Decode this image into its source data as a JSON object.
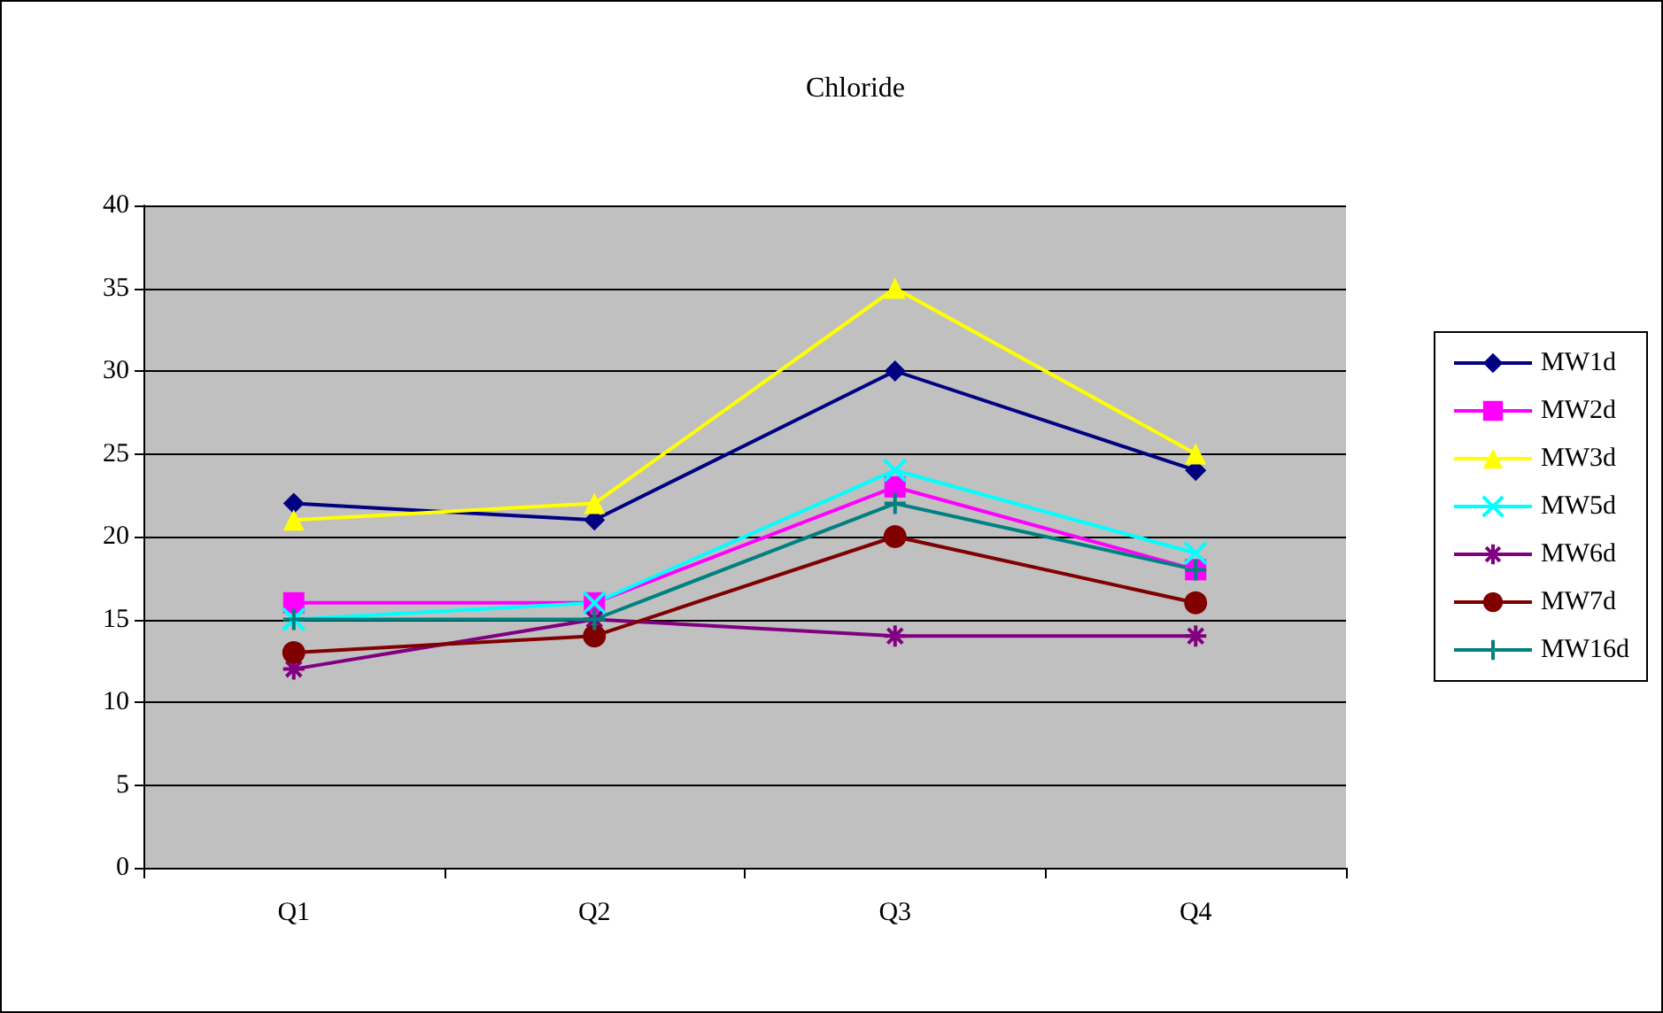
{
  "chart_data": {
    "type": "line",
    "title": "Chloride",
    "categories": [
      "Q1",
      "Q2",
      "Q3",
      "Q4"
    ],
    "series": [
      {
        "name": "MW1d",
        "color": "#000080",
        "marker": "diamond",
        "values": [
          22,
          21,
          30,
          24
        ]
      },
      {
        "name": "MW2d",
        "color": "#ff00ff",
        "marker": "square",
        "values": [
          16,
          16,
          23,
          18
        ]
      },
      {
        "name": "MW3d",
        "color": "#ffff00",
        "marker": "triangle",
        "values": [
          21,
          22,
          35,
          25
        ]
      },
      {
        "name": "MW5d",
        "color": "#00ffff",
        "marker": "x",
        "values": [
          15,
          16,
          24,
          19
        ]
      },
      {
        "name": "MW6d",
        "color": "#800080",
        "marker": "cross",
        "values": [
          12,
          15,
          14,
          14
        ]
      },
      {
        "name": "MW7d",
        "color": "#800000",
        "marker": "circle",
        "values": [
          13,
          14,
          20,
          16
        ]
      },
      {
        "name": "MW16d",
        "color": "#008080",
        "marker": "plus",
        "values": [
          15,
          15,
          22,
          18
        ]
      }
    ],
    "ylim": [
      0,
      40
    ],
    "yticks": [
      0,
      5,
      10,
      15,
      20,
      25,
      30,
      35,
      40
    ],
    "grid": "y",
    "legend": "right"
  }
}
